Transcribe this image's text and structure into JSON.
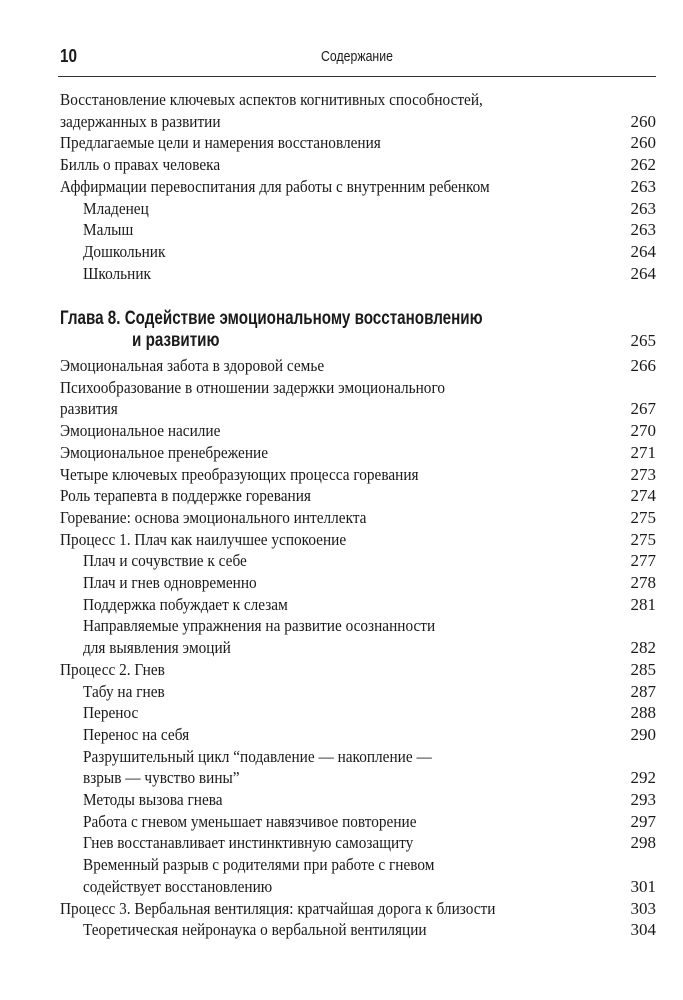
{
  "header": {
    "page_number": "10",
    "running_head": "Содержание"
  },
  "top_entries": [
    {
      "lines": [
        "Восстановление ключевых аспектов когнитивных способностей,",
        "задержанных в развитии"
      ],
      "page": "260",
      "level": 0
    },
    {
      "lines": [
        "Предлагаемые цели и намерения восстановления"
      ],
      "page": "260",
      "level": 0
    },
    {
      "lines": [
        "Билль о правах человека"
      ],
      "page": "262",
      "level": 0
    },
    {
      "lines": [
        "Аффирмации перевоспитания для работы с внутренним ребенком"
      ],
      "page": "263",
      "level": 0
    },
    {
      "lines": [
        "Младенец"
      ],
      "page": "263",
      "level": 1
    },
    {
      "lines": [
        "Малыш"
      ],
      "page": "263",
      "level": 1
    },
    {
      "lines": [
        "Дошкольник"
      ],
      "page": "264",
      "level": 1
    },
    {
      "lines": [
        "Школьник"
      ],
      "page": "264",
      "level": 1
    }
  ],
  "chapter": {
    "lines": [
      "Глава 8. Содействие эмоциональному восстановлению",
      "и развитию"
    ],
    "page": "265"
  },
  "chapter_entries": [
    {
      "lines": [
        "Эмоциональная забота в здоровой семье"
      ],
      "page": "266",
      "level": 0
    },
    {
      "lines": [
        "Психообразование в отношении задержки эмоционального",
        "развития"
      ],
      "page": "267",
      "level": 0
    },
    {
      "lines": [
        "Эмоциональное насилие"
      ],
      "page": "270",
      "level": 0
    },
    {
      "lines": [
        "Эмоциональное пренебрежение"
      ],
      "page": "271",
      "level": 0
    },
    {
      "lines": [
        "Четыре ключевых преобразующих процесса горевания"
      ],
      "page": "273",
      "level": 0
    },
    {
      "lines": [
        "Роль терапевта в поддержке горевания"
      ],
      "page": "274",
      "level": 0
    },
    {
      "lines": [
        "Горевание: основа эмоционального интеллекта"
      ],
      "page": "275",
      "level": 0
    },
    {
      "lines": [
        "Процесс 1. Плач как наилучшее успокоение"
      ],
      "page": "275",
      "level": 0
    },
    {
      "lines": [
        "Плач и сочувствие к себе"
      ],
      "page": "277",
      "level": 1
    },
    {
      "lines": [
        "Плач и гнев одновременно"
      ],
      "page": "278",
      "level": 1
    },
    {
      "lines": [
        "Поддержка побуждает к слезам"
      ],
      "page": "281",
      "level": 1
    },
    {
      "lines": [
        "Направляемые упражнения на развитие осознанности",
        "для выявления эмоций"
      ],
      "page": "282",
      "level": 1
    },
    {
      "lines": [
        "Процесс 2. Гнев"
      ],
      "page": "285",
      "level": 0
    },
    {
      "lines": [
        "Табу на гнев"
      ],
      "page": "287",
      "level": 1
    },
    {
      "lines": [
        "Перенос"
      ],
      "page": "288",
      "level": 1
    },
    {
      "lines": [
        "Перенос на себя"
      ],
      "page": "290",
      "level": 1
    },
    {
      "lines": [
        "Разрушительный цикл “подавление — накопление —",
        "взрыв — чувство вины”"
      ],
      "page": "292",
      "level": 1
    },
    {
      "lines": [
        "Методы вызова гнева"
      ],
      "page": "293",
      "level": 1
    },
    {
      "lines": [
        "Работа с гневом уменьшает навязчивое повторение"
      ],
      "page": "297",
      "level": 1
    },
    {
      "lines": [
        "Гнев восстанавливает инстинктивную самозащиту"
      ],
      "page": "298",
      "level": 1
    },
    {
      "lines": [
        "Временный разрыв с родителями при работе с гневом",
        "содействует восстановлению"
      ],
      "page": "301",
      "level": 1
    },
    {
      "lines": [
        "Процесс 3. Вербальная вентиляция: кратчайшая дорога к близости"
      ],
      "page": "303",
      "level": 0
    },
    {
      "lines": [
        "Теоретическая нейронаука о вербальной вентиляции"
      ],
      "page": "304",
      "level": 1
    }
  ]
}
